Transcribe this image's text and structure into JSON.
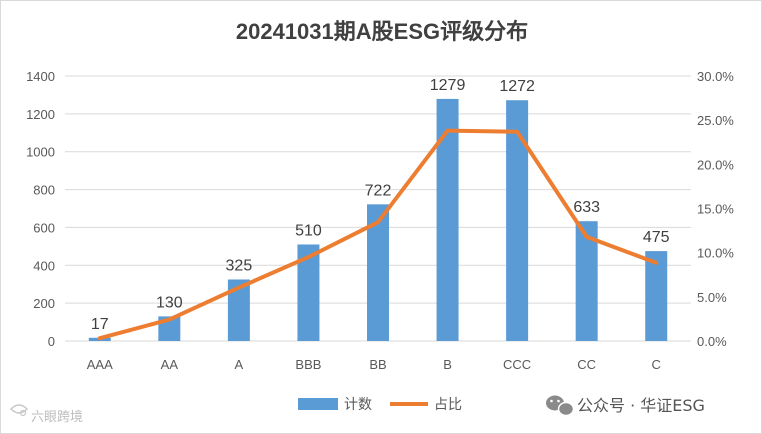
{
  "chart_data": {
    "type": "bar",
    "title": "20241031期A股ESG评级分布",
    "categories": [
      "AAA",
      "AA",
      "A",
      "BBB",
      "BB",
      "B",
      "CCC",
      "CC",
      "C"
    ],
    "series": [
      {
        "name": "计数",
        "type": "bar",
        "axis": "left",
        "color": "#5b9bd5",
        "values": [
          17,
          130,
          325,
          510,
          722,
          1279,
          1272,
          633,
          475
        ]
      },
      {
        "name": "占比",
        "type": "line",
        "axis": "right",
        "color": "#ed7d31",
        "values": [
          0.32,
          2.42,
          6.05,
          9.5,
          13.45,
          23.82,
          23.69,
          11.79,
          8.85
        ]
      }
    ],
    "ylim": [
      0,
      1400
    ],
    "yticks": [
      "0",
      "200",
      "400",
      "600",
      "800",
      "1000",
      "1200",
      "1400"
    ],
    "y2lim": [
      0,
      30
    ],
    "y2ticks": [
      "0.0%",
      "5.0%",
      "10.0%",
      "15.0%",
      "20.0%",
      "25.0%",
      "30.0%"
    ],
    "grid": true,
    "legend": "bottom"
  },
  "watermark": {
    "brand_text": "公众号 · 华证ESG",
    "corner_text": "六眼跨境",
    "brand_icon": "wechat-icon",
    "corner_icon": "scarf-logo-icon"
  }
}
